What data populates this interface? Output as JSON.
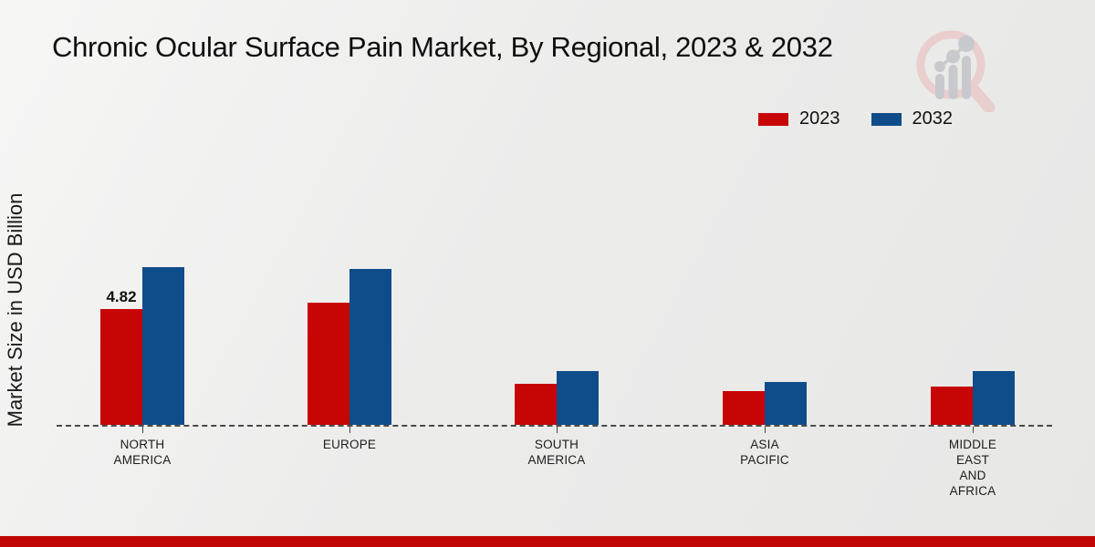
{
  "title": "Chronic Ocular Surface Pain Market, By Regional, 2023 & 2032",
  "ylabel": "Market Size in USD Billion",
  "logo_name": "market-research-future-logo",
  "footer": {
    "accent_color": "#c00606"
  },
  "chart_data": {
    "type": "bar",
    "title": "Chronic Ocular Surface Pain Market, By Regional, 2023 & 2032",
    "xlabel": "",
    "ylabel": "Market Size in USD Billion",
    "categories": [
      "North America",
      "Europe",
      "South America",
      "Asia Pacific",
      "Middle East and Africa"
    ],
    "category_label_lines": [
      [
        "NORTH",
        "AMERICA"
      ],
      [
        "EUROPE"
      ],
      [
        "SOUTH",
        "AMERICA"
      ],
      [
        "ASIA",
        "PACIFIC"
      ],
      [
        "MIDDLE",
        "EAST",
        "AND",
        "AFRICA"
      ]
    ],
    "series": [
      {
        "name": "2023",
        "color": "#c70505",
        "values": [
          4.82,
          5.08,
          1.7,
          1.42,
          1.58
        ]
      },
      {
        "name": "2032",
        "color": "#0f4d8a",
        "values": [
          6.58,
          6.52,
          2.23,
          1.8,
          2.23
        ]
      }
    ],
    "data_labels": [
      {
        "series_index": 0,
        "category_index": 0,
        "text": "4.82"
      }
    ],
    "axis": {
      "baseline_style": "dashed",
      "gridlines": false,
      "y_tick_labels_visible": false
    },
    "legend_position": "top-right",
    "ylim": [
      0,
      7.6
    ]
  }
}
